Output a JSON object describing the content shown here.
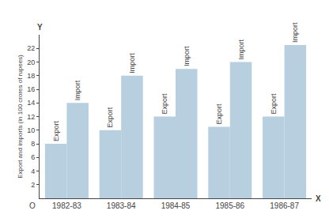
{
  "chart_data": {
    "type": "bar",
    "ylabel": "Export and imports (in 100 crores of rupees)",
    "categories": [
      "1982-83",
      "1983-84",
      "1984-85",
      "1985-86",
      "1986-87"
    ],
    "series": [
      {
        "name": "Export",
        "color": "#b8cfe0",
        "values": [
          8,
          10,
          12,
          10.5,
          12
        ]
      },
      {
        "name": "Import",
        "color": "#b8cfe0",
        "values": [
          14,
          18,
          19,
          20,
          22.5
        ]
      }
    ],
    "ylim": [
      0,
      24
    ],
    "yticks": [
      2,
      4,
      6,
      8,
      10,
      12,
      14,
      16,
      18,
      20,
      22
    ],
    "annotations": [
      "O",
      "Y",
      "X"
    ],
    "grid": false
  }
}
